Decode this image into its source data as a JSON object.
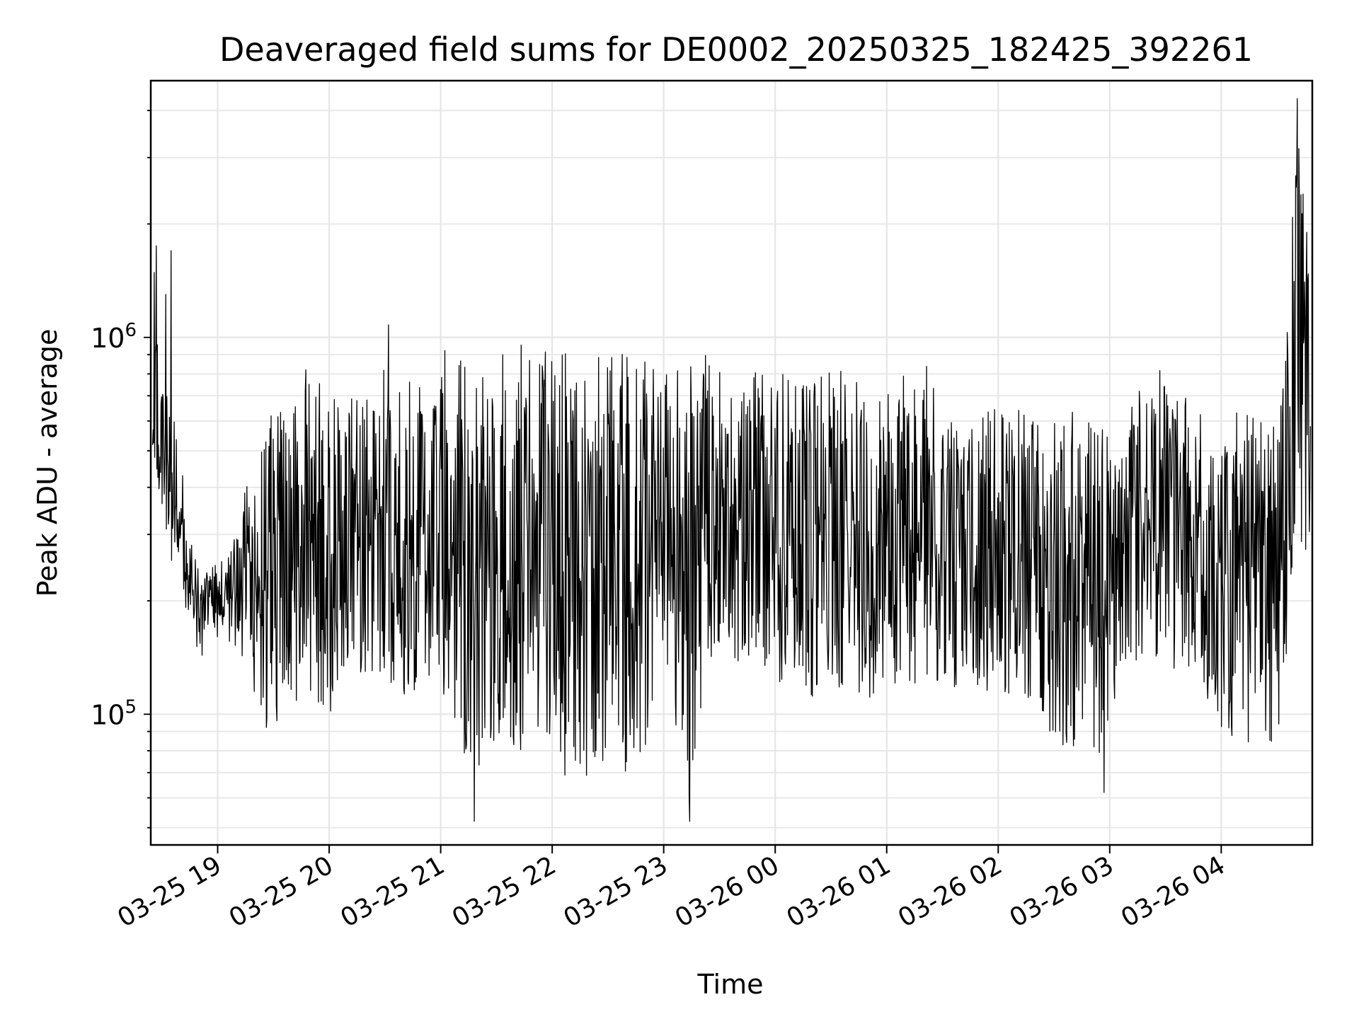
{
  "chart_data": {
    "type": "line",
    "title": "Deaveraged field sums for DE0002_20250325_182425_392261",
    "xlabel": "Time",
    "ylabel": "Peak ADU - average",
    "y_scale": "log",
    "ylim": [
      45000,
      4800000
    ],
    "xlim": [
      "2025-03-25 18:24",
      "2025-03-26 04:49"
    ],
    "grid": true,
    "line_color": "#000000",
    "x_ticks": [
      {
        "t": "2025-03-25 19:00",
        "label": "03-25 19"
      },
      {
        "t": "2025-03-25 20:00",
        "label": "03-25 20"
      },
      {
        "t": "2025-03-25 21:00",
        "label": "03-25 21"
      },
      {
        "t": "2025-03-25 22:00",
        "label": "03-25 22"
      },
      {
        "t": "2025-03-25 23:00",
        "label": "03-25 23"
      },
      {
        "t": "2025-03-26 00:00",
        "label": "03-26 00"
      },
      {
        "t": "2025-03-26 01:00",
        "label": "03-26 01"
      },
      {
        "t": "2025-03-26 02:00",
        "label": "03-26 02"
      },
      {
        "t": "2025-03-26 03:00",
        "label": "03-26 03"
      },
      {
        "t": "2025-03-26 04:00",
        "label": "03-26 04"
      }
    ],
    "y_major_ticks": [
      {
        "value": 100000,
        "base": "10",
        "exp": "5"
      },
      {
        "value": 1000000,
        "base": "10",
        "exp": "6"
      }
    ],
    "series": [
      {
        "style": "envelope",
        "x": [
          "2025-03-25 18:25",
          "2025-03-25 18:30",
          "2025-03-25 18:35",
          "2025-03-25 18:40",
          "2025-03-25 18:45",
          "2025-03-25 18:50",
          "2025-03-25 19:00",
          "2025-03-25 19:10",
          "2025-03-25 19:20",
          "2025-03-25 19:30",
          "2025-03-25 19:40",
          "2025-03-25 19:50",
          "2025-03-25 20:00",
          "2025-03-25 20:10",
          "2025-03-25 20:20",
          "2025-03-25 20:30",
          "2025-03-25 20:40",
          "2025-03-25 20:50",
          "2025-03-25 21:00",
          "2025-03-25 21:10",
          "2025-03-25 21:20",
          "2025-03-25 21:30",
          "2025-03-25 21:40",
          "2025-03-25 21:50",
          "2025-03-25 22:00",
          "2025-03-25 22:10",
          "2025-03-25 22:20",
          "2025-03-25 22:30",
          "2025-03-25 22:40",
          "2025-03-25 22:50",
          "2025-03-25 23:00",
          "2025-03-25 23:10",
          "2025-03-25 23:15",
          "2025-03-25 23:20",
          "2025-03-25 23:30",
          "2025-03-25 23:40",
          "2025-03-25 23:50",
          "2025-03-26 00:00",
          "2025-03-26 00:10",
          "2025-03-26 00:20",
          "2025-03-26 00:30",
          "2025-03-26 00:40",
          "2025-03-26 00:50",
          "2025-03-26 01:00",
          "2025-03-26 01:10",
          "2025-03-26 01:20",
          "2025-03-26 01:30",
          "2025-03-26 01:40",
          "2025-03-26 01:50",
          "2025-03-26 02:00",
          "2025-03-26 02:10",
          "2025-03-26 02:20",
          "2025-03-26 02:30",
          "2025-03-26 02:40",
          "2025-03-26 02:50",
          "2025-03-26 03:00",
          "2025-03-26 03:10",
          "2025-03-26 03:20",
          "2025-03-26 03:30",
          "2025-03-26 03:40",
          "2025-03-26 03:50",
          "2025-03-26 04:00",
          "2025-03-26 04:10",
          "2025-03-26 04:20",
          "2025-03-26 04:30",
          "2025-03-26 04:35",
          "2025-03-26 04:40",
          "2025-03-26 04:45",
          "2025-03-26 04:48"
        ],
        "low": [
          310000,
          330000,
          250000,
          240000,
          160000,
          140000,
          160000,
          150000,
          105000,
          80000,
          90000,
          110000,
          100000,
          110000,
          115000,
          125000,
          105000,
          120000,
          110000,
          80000,
          70000,
          75000,
          78000,
          72000,
          70000,
          68000,
          65000,
          70000,
          70000,
          75000,
          140000,
          60000,
          60000,
          75000,
          150000,
          130000,
          140000,
          120000,
          120000,
          105000,
          115000,
          115000,
          110000,
          120000,
          120000,
          120000,
          120000,
          115000,
          115000,
          105000,
          110000,
          110000,
          80000,
          75000,
          70000,
          85000,
          130000,
          140000,
          140000,
          120000,
          95000,
          90000,
          80000,
          80000,
          85000,
          120000,
          220000,
          250000,
          260000
        ],
        "high": [
          1700000,
          800000,
          760000,
          500000,
          300000,
          240000,
          250000,
          320000,
          500000,
          650000,
          760000,
          860000,
          700000,
          720000,
          720000,
          880000,
          790000,
          760000,
          940000,
          880000,
          930000,
          970000,
          960000,
          980000,
          970000,
          960000,
          970000,
          980000,
          970000,
          920000,
          800000,
          960000,
          960000,
          920000,
          880000,
          830000,
          860000,
          830000,
          850000,
          830000,
          830000,
          810000,
          810000,
          820000,
          840000,
          860000,
          820000,
          650000,
          640000,
          650000,
          680000,
          650000,
          650000,
          650000,
          620000,
          600000,
          650000,
          870000,
          800000,
          700000,
          650000,
          640000,
          640000,
          600000,
          600000,
          900000,
          4200000,
          1900000,
          1800000
        ]
      }
    ],
    "spikes": [
      {
        "t": "2025-03-25 18:27",
        "y": 1750000
      },
      {
        "t": "2025-03-25 18:35",
        "y": 1700000
      },
      {
        "t": "2025-03-25 18:32",
        "y": 1300000
      },
      {
        "t": "2025-03-25 20:32",
        "y": 1080000
      },
      {
        "t": "2025-03-25 23:14",
        "y": 52000
      },
      {
        "t": "2025-03-25 21:18",
        "y": 52000
      },
      {
        "t": "2025-03-26 02:57",
        "y": 62000
      },
      {
        "t": "2025-03-26 04:41",
        "y": 4300000
      },
      {
        "t": "2025-03-26 04:44",
        "y": 2400000
      },
      {
        "t": "2025-03-26 04:46",
        "y": 1900000
      }
    ]
  }
}
